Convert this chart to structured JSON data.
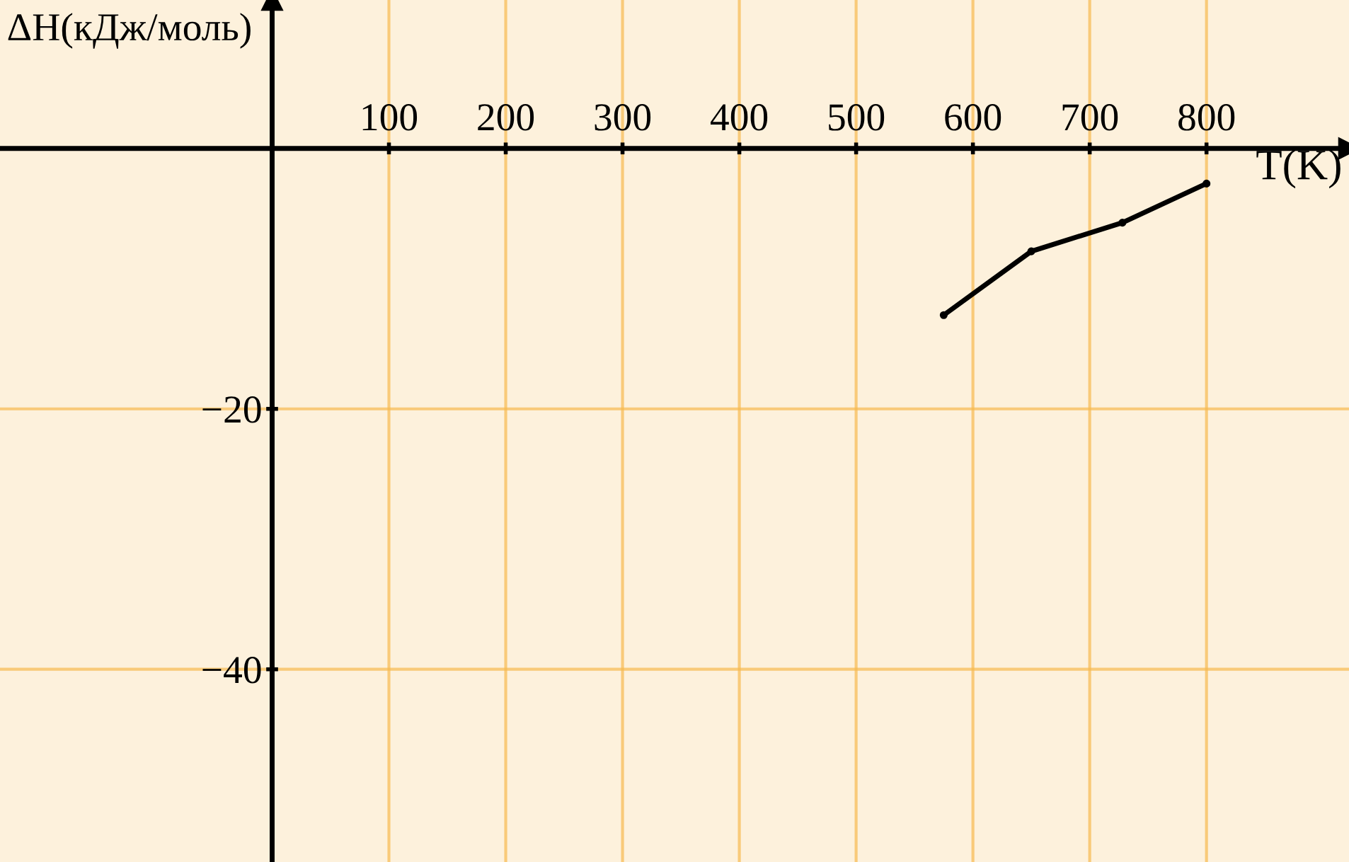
{
  "chart_data": {
    "type": "line",
    "xlabel": "T(K)",
    "ylabel": "ΔH(кДж/моль)",
    "x": [
      575,
      650,
      728,
      800
    ],
    "series": [
      {
        "color": "#000000",
        "values": [
          -12.8,
          -7.9,
          -5.7,
          -2.7
        ]
      }
    ],
    "xlim": [
      -233,
      922
    ],
    "ylim": [
      -54.8,
      11.4
    ],
    "xticks": [
      100,
      200,
      300,
      400,
      500,
      600,
      700,
      800
    ],
    "yticks": [
      -20,
      -40
    ],
    "grid": true,
    "marker": "circle",
    "line_style": "solid"
  }
}
